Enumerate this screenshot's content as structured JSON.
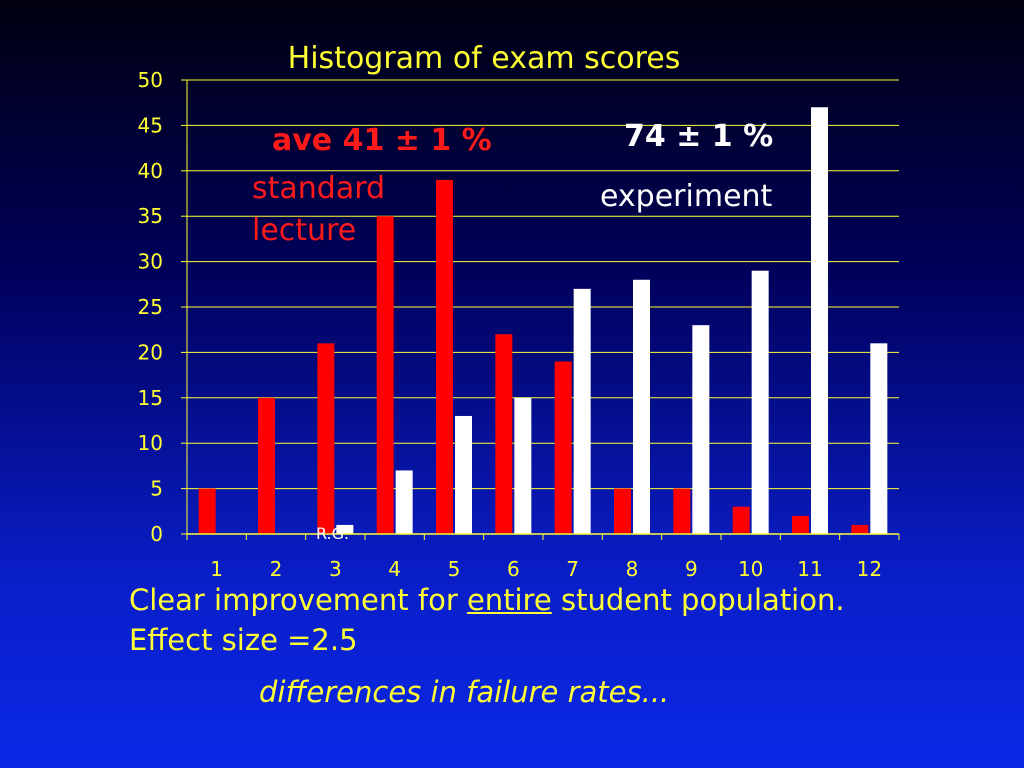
{
  "chart_data": {
    "type": "bar",
    "title": "Histogram of exam scores",
    "categories": [
      "1",
      "2",
      "3",
      "4",
      "5",
      "6",
      "7",
      "8",
      "9",
      "10",
      "11",
      "12"
    ],
    "series": [
      {
        "values": [
          5,
          15,
          21,
          35,
          39,
          22,
          19,
          5,
          5,
          3,
          2,
          1
        ],
        "color": "#ff0000"
      },
      {
        "values": [
          0,
          0,
          1,
          7,
          13,
          15,
          27,
          28,
          23,
          29,
          47,
          21
        ],
        "color": "#ffffff"
      }
    ],
    "yticks": [
      0,
      5,
      10,
      15,
      20,
      25,
      30,
      35,
      40,
      45,
      50
    ],
    "ylim": [
      0,
      50
    ],
    "grid": true,
    "xlabel": "",
    "ylabel": "",
    "annotations": {
      "ave": "ave 41 ± 1 %",
      "standard_line1": "standard",
      "standard_line2": "lecture",
      "exp_value": "74 ± 1 %",
      "exp_label": "experiment",
      "rg": "R.G."
    }
  },
  "caption": {
    "line1_pre": "Clear improvement for ",
    "line1_emph": "entire",
    "line1_post": " student population.",
    "line2": "Effect size =2.5",
    "line3": "differences in failure rates..."
  },
  "colors": {
    "text": "#ffff33",
    "standard": "#ff0000",
    "experiment": "#ffffff",
    "grid": "#ffff33"
  }
}
